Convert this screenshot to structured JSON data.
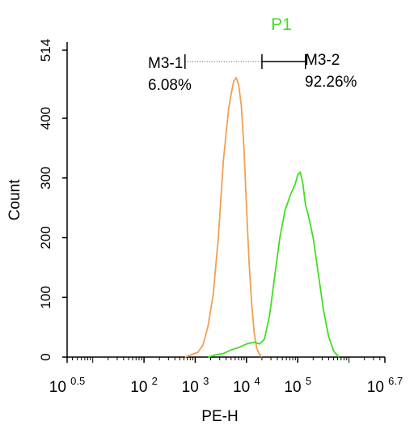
{
  "chart_data": {
    "type": "line",
    "title": "P1",
    "xlabel": "PE-H",
    "ylabel": "Count",
    "xscale": "log",
    "xlim": [
      3.162,
      5011872
    ],
    "ylim": [
      0,
      514
    ],
    "grid": false,
    "x_ticks": [
      {
        "value": 3.162,
        "base": "10",
        "exp": "0.5"
      },
      {
        "value": 100,
        "base": "10",
        "exp": "2"
      },
      {
        "value": 1000,
        "base": "10",
        "exp": "3"
      },
      {
        "value": 10000,
        "base": "10",
        "exp": "4"
      },
      {
        "value": 100000,
        "base": "10",
        "exp": "5"
      },
      {
        "value": 5011872,
        "base": "10",
        "exp": "6.7"
      }
    ],
    "y_ticks": [
      0,
      100,
      200,
      300,
      400,
      514
    ],
    "series": [
      {
        "color": "#f0a050",
        "points": [
          [
            631,
            0
          ],
          [
            1122,
            8
          ],
          [
            1413,
            20
          ],
          [
            1778,
            52
          ],
          [
            2239,
            105
          ],
          [
            2818,
            200
          ],
          [
            3548,
            330
          ],
          [
            4467,
            415
          ],
          [
            5012,
            440
          ],
          [
            5623,
            462
          ],
          [
            6310,
            468
          ],
          [
            7079,
            455
          ],
          [
            7943,
            420
          ],
          [
            8913,
            350
          ],
          [
            10000,
            250
          ],
          [
            11220,
            160
          ],
          [
            12589,
            90
          ],
          [
            14125,
            40
          ],
          [
            15849,
            15
          ],
          [
            17783,
            5
          ],
          [
            19953,
            0
          ]
        ]
      },
      {
        "color": "#44dd22",
        "points": [
          [
            1778,
            0
          ],
          [
            2512,
            4
          ],
          [
            3548,
            6
          ],
          [
            5012,
            12
          ],
          [
            7079,
            16
          ],
          [
            10000,
            22
          ],
          [
            14125,
            25
          ],
          [
            17783,
            22
          ],
          [
            22387,
            30
          ],
          [
            28184,
            70
          ],
          [
            35481,
            135
          ],
          [
            44668,
            200
          ],
          [
            56234,
            245
          ],
          [
            70795,
            270
          ],
          [
            89125,
            290
          ],
          [
            100000,
            305
          ],
          [
            112202,
            310
          ],
          [
            125893,
            290
          ],
          [
            141254,
            255
          ],
          [
            158489,
            240
          ],
          [
            199526,
            200
          ],
          [
            251189,
            140
          ],
          [
            316228,
            80
          ],
          [
            398107,
            35
          ],
          [
            501187,
            10
          ],
          [
            630957,
            0
          ]
        ]
      }
    ],
    "annotations": [
      {
        "label": "M3-1",
        "value": "6.08%"
      },
      {
        "label": "M3-2",
        "value": "92.26%"
      }
    ],
    "gate": {
      "x_start": 631,
      "x_split": 20000,
      "x_end": 141254,
      "y": 495
    }
  }
}
